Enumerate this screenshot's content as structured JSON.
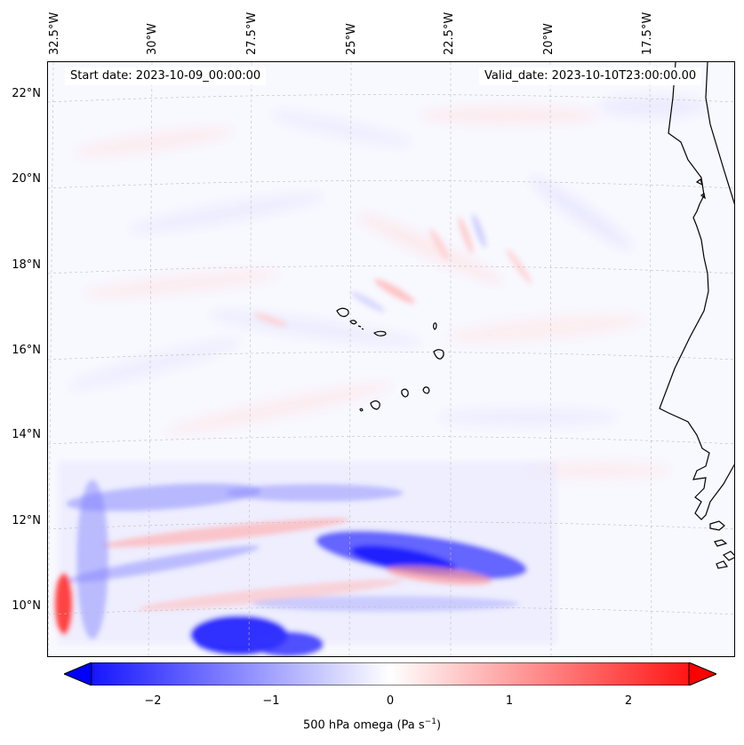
{
  "annotations": {
    "start_date": "Start date: 2023-10-09_00:00:00",
    "valid_date": "Valid_date: 2023-10-10T23:00:00.00"
  },
  "longitude_ticks": [
    "32.5°W",
    "30°W",
    "27.5°W",
    "25°W",
    "22.5°W",
    "20°W",
    "17.5°W"
  ],
  "latitude_ticks": [
    "22°N",
    "20°N",
    "18°N",
    "16°N",
    "14°N",
    "12°N",
    "10°N"
  ],
  "colorbar": {
    "ticks": [
      "−2",
      "−1",
      "0",
      "1",
      "2"
    ],
    "label": "500 hPa omega (Pa s",
    "label_superscript": "−1",
    "label_suffix": ")",
    "extend": "both",
    "colormap": "bwr",
    "range": [
      -2.6,
      2.6
    ]
  },
  "colors": {
    "negative": "#0000ff",
    "neutral": "#ffffff",
    "positive": "#ff0000",
    "coastline": "#000000"
  }
}
